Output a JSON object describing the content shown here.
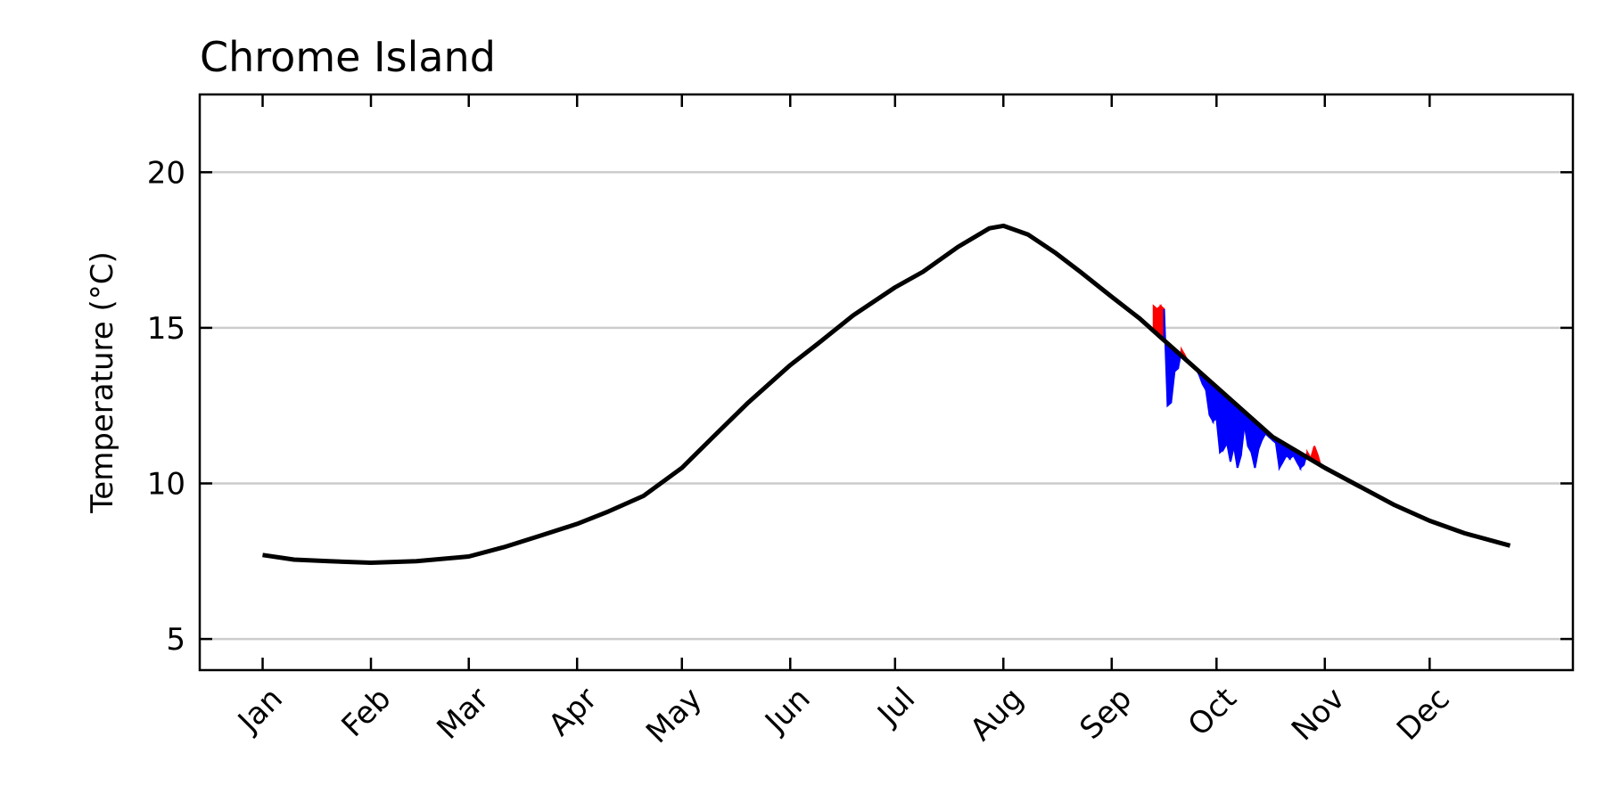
{
  "chart_data": {
    "type": "line",
    "title": "Chrome Island",
    "ylabel": "Temperature ($^\\circ$C)",
    "ylabel_display": "Temperature (°C)",
    "xlabel": "",
    "ylim": [
      4,
      22.5
    ],
    "yticks": [
      5,
      10,
      15,
      20
    ],
    "grid": "horizontal",
    "months": [
      "Jan",
      "Feb",
      "Mar",
      "Apr",
      "May",
      "Jun",
      "Jul",
      "Aug",
      "Sep",
      "Oct",
      "Nov",
      "Dec"
    ],
    "month_day": [
      1,
      32,
      60,
      91,
      121,
      152,
      182,
      213,
      244,
      274,
      305,
      335
    ],
    "xlim": [
      -17,
      376
    ],
    "colors": {
      "climatology": "#000000",
      "above": "#ff0000",
      "below": "#0000ff",
      "grid": "#cccccc"
    },
    "series": [
      {
        "name": "",
        "role": "climatology",
        "x": [
          1,
          10,
          20,
          32,
          45,
          60,
          70,
          80,
          91,
          100,
          110,
          121,
          130,
          140,
          152,
          160,
          170,
          182,
          190,
          200,
          209,
          213,
          220,
          228,
          235,
          244,
          252,
          260,
          274,
          282,
          290,
          305,
          315,
          325,
          335,
          345,
          358
        ],
        "y": [
          7.7,
          7.55,
          7.5,
          7.45,
          7.5,
          7.65,
          7.95,
          8.3,
          8.7,
          9.1,
          9.6,
          10.5,
          11.5,
          12.6,
          13.8,
          14.5,
          15.4,
          16.3,
          16.8,
          17.6,
          18.2,
          18.28,
          18.0,
          17.4,
          16.8,
          16.0,
          15.3,
          14.5,
          13.1,
          12.3,
          11.5,
          10.5,
          9.9,
          9.3,
          8.8,
          8.4,
          8.0
        ]
      },
      {
        "name": "",
        "role": "observed",
        "x": [
          256,
          257,
          258,
          259,
          260,
          261,
          262,
          263,
          264,
          265,
          266,
          267,
          268,
          269,
          270,
          271,
          272,
          273,
          274,
          275,
          276,
          277,
          278,
          279,
          280,
          281,
          282,
          283,
          284,
          285,
          286,
          287,
          288,
          289,
          290,
          291,
          292,
          293,
          294,
          295,
          296,
          297,
          298,
          299,
          300,
          301,
          302,
          303,
          304
        ],
        "y": [
          15.7,
          15.6,
          15.7,
          15.6,
          12.5,
          12.6,
          13.6,
          13.7,
          14.3,
          14.1,
          13.9,
          13.8,
          13.7,
          13.5,
          13.2,
          13.0,
          12.2,
          12.0,
          12.1,
          11.0,
          11.1,
          11.3,
          10.7,
          11.2,
          10.5,
          10.9,
          11.9,
          11.2,
          11.0,
          10.5,
          11.1,
          11.4,
          11.6,
          11.5,
          11.4,
          11.3,
          10.5,
          10.7,
          10.9,
          10.8,
          10.9,
          10.7,
          10.5,
          10.6,
          11.0,
          10.8,
          11.2,
          10.9,
          10.5
        ]
      }
    ]
  }
}
